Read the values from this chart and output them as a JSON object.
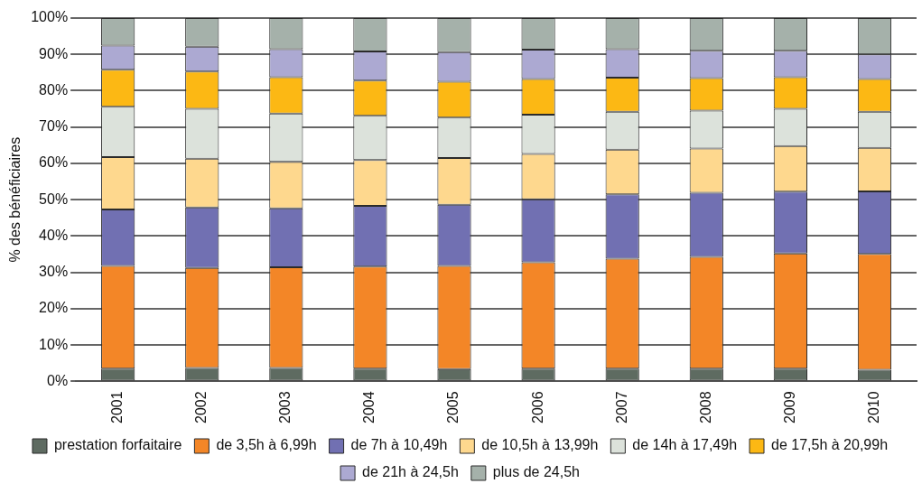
{
  "chart_data": {
    "type": "bar",
    "stacked": true,
    "ylabel": "% des bénéficiaires",
    "categories": [
      "2001",
      "2002",
      "2003",
      "2004",
      "2005",
      "2006",
      "2007",
      "2008",
      "2009",
      "2010"
    ],
    "series": [
      {
        "name": "prestation forfaitaire",
        "color": "#5e6b61",
        "values": [
          3.5,
          3.7,
          3.7,
          3.5,
          3.4,
          3.5,
          3.5,
          3.5,
          3.5,
          3.2
        ]
      },
      {
        "name": "de 3,5h à 6,99h",
        "color": "#f38627",
        "values": [
          28.3,
          27.5,
          27.7,
          28.1,
          28.4,
          29.3,
          30.3,
          30.8,
          31.7,
          31.9
        ]
      },
      {
        "name": "de 7h à 10,49h",
        "color": "#7170b2",
        "values": [
          15.5,
          16.7,
          16.2,
          16.7,
          16.8,
          17.3,
          17.7,
          17.6,
          17.0,
          17.2
        ]
      },
      {
        "name": "de 10,5h à 13,99h",
        "color": "#fed88e",
        "values": [
          14.4,
          13.4,
          12.8,
          12.6,
          12.9,
          12.5,
          12.3,
          12.2,
          12.6,
          12.0
        ]
      },
      {
        "name": "de 14h à 17,49h",
        "color": "#dce2db",
        "values": [
          13.9,
          13.7,
          13.3,
          12.2,
          11.1,
          10.8,
          10.4,
          10.4,
          10.2,
          9.9
        ]
      },
      {
        "name": "de 17,5h à 20,99h",
        "color": "#fcb814",
        "values": [
          10.2,
          10.3,
          10.0,
          9.7,
          9.9,
          9.8,
          9.4,
          9.0,
          8.7,
          9.0
        ]
      },
      {
        "name": "de 21h à 24,5h",
        "color": "#aca9d2",
        "values": [
          6.6,
          6.8,
          7.7,
          8.0,
          8.1,
          8.1,
          7.8,
          7.5,
          7.3,
          6.8
        ]
      },
      {
        "name": "plus de 24,5h",
        "color": "#a5b1aa",
        "values": [
          7.6,
          7.9,
          8.6,
          9.2,
          9.4,
          8.7,
          8.6,
          9.0,
          9.0,
          10.0
        ]
      }
    ],
    "ylim": [
      0,
      100
    ],
    "yticks": [
      {
        "value": 0,
        "label": "0%"
      },
      {
        "value": 10,
        "label": "10%"
      },
      {
        "value": 20,
        "label": "20%"
      },
      {
        "value": 30,
        "label": "30%"
      },
      {
        "value": 40,
        "label": "40%"
      },
      {
        "value": 50,
        "label": "50%"
      },
      {
        "value": 60,
        "label": "60%"
      },
      {
        "value": 70,
        "label": "70%"
      },
      {
        "value": 80,
        "label": "80%"
      },
      {
        "value": 90,
        "label": "90%"
      },
      {
        "value": 100,
        "label": "100%"
      }
    ],
    "grid": "y",
    "legend": "bottom"
  }
}
